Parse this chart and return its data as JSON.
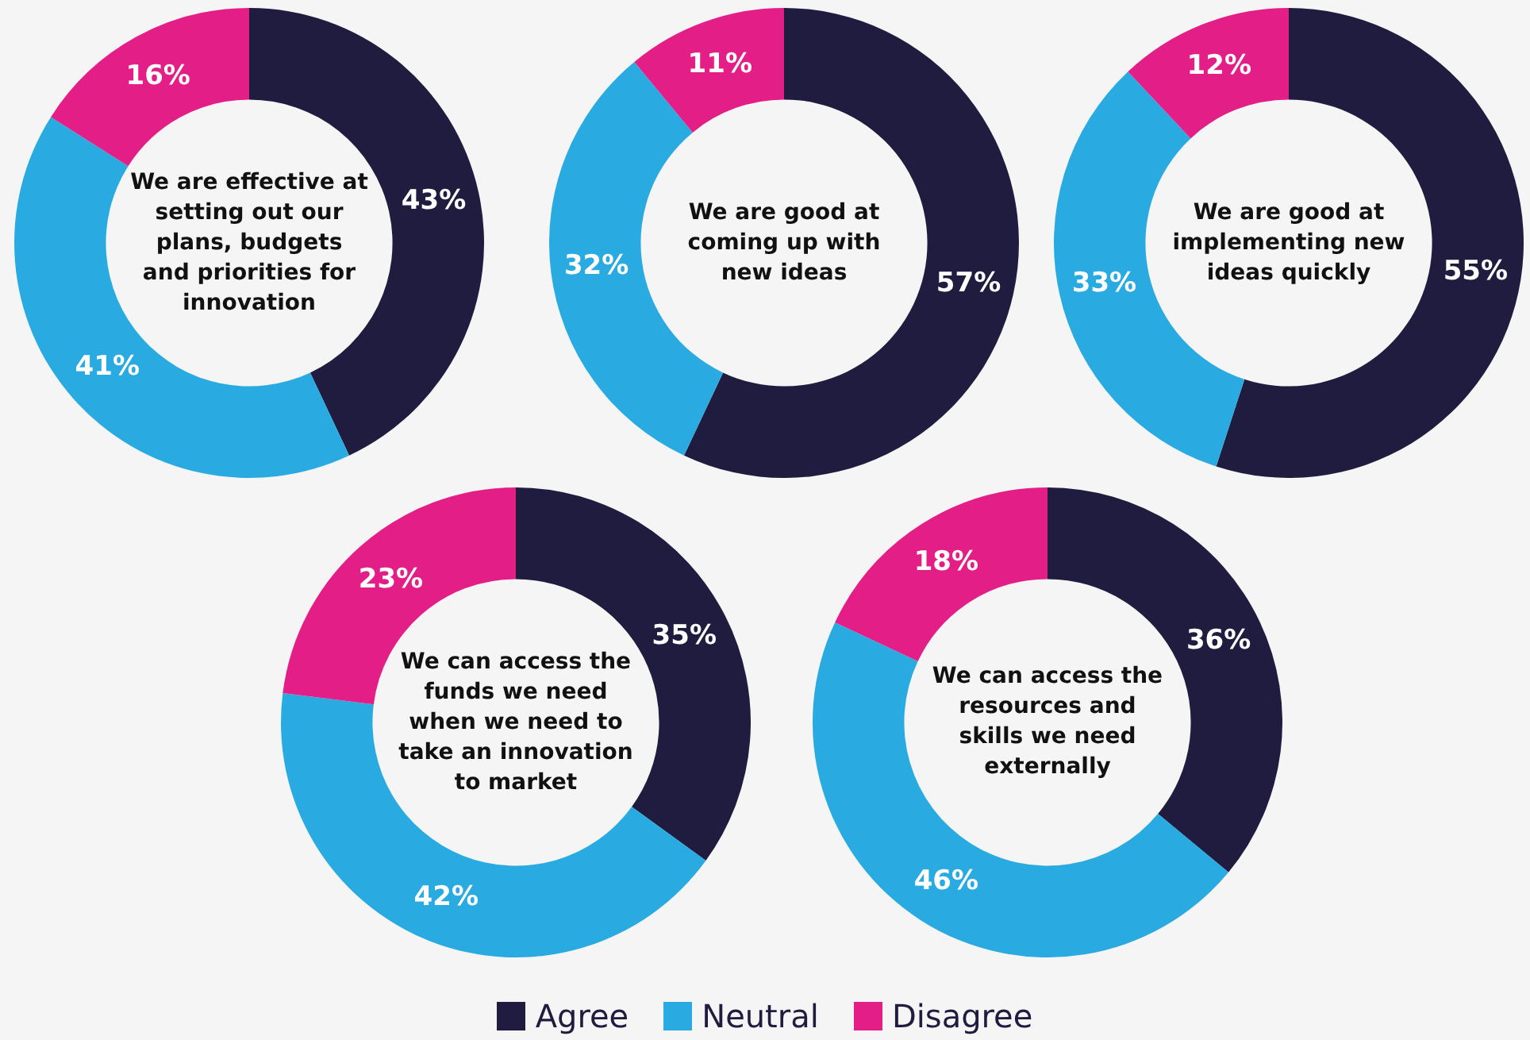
{
  "chart_data": [
    {
      "type": "donut",
      "title": "We are effective at setting out our plans, budgets and priorities for innovation",
      "categories": [
        "Agree",
        "Neutral",
        "Disagree"
      ],
      "values": [
        43,
        41,
        16
      ],
      "colors": [
        "#1f1c40",
        "#29abe2",
        "#e31f87"
      ],
      "value_labels": [
        "43%",
        "41%",
        "16%"
      ],
      "legend": "bottom"
    },
    {
      "type": "donut",
      "title": "We are good at coming up with new ideas",
      "categories": [
        null,
        null,
        null
      ],
      "values": [
        57,
        32,
        11
      ],
      "colors": [
        "#1f1c40",
        "#29abe2",
        "#e31f87"
      ],
      "value_labels": [
        "57%",
        "32%",
        "11%"
      ]
    },
    {
      "type": "donut",
      "title": "We are good at implementing new ideas quickly",
      "categories": [
        null,
        null,
        null
      ],
      "values": [
        55,
        33,
        12
      ],
      "colors": [
        "#1f1c40",
        "#29abe2",
        "#e31f87"
      ],
      "value_labels": [
        "55%",
        "33%",
        "12%"
      ]
    },
    {
      "type": "donut",
      "title": "We can access the funds we need when we need to take an innovation to market",
      "categories": [
        null,
        null,
        null
      ],
      "values": [
        35,
        42,
        23
      ],
      "colors": [
        "#1f1c40",
        "#29abe2",
        "#e31f87"
      ],
      "value_labels": [
        "35%",
        "42%",
        "23%"
      ]
    },
    {
      "type": "donut",
      "title": "We can access the resources and skills we need externally",
      "categories": [
        null,
        null,
        null
      ],
      "values": [
        36,
        46,
        18
      ],
      "colors": [
        "#1f1c40",
        "#29abe2",
        "#e31f87"
      ],
      "value_labels": [
        "36%",
        "46%",
        "18%"
      ]
    }
  ]
}
